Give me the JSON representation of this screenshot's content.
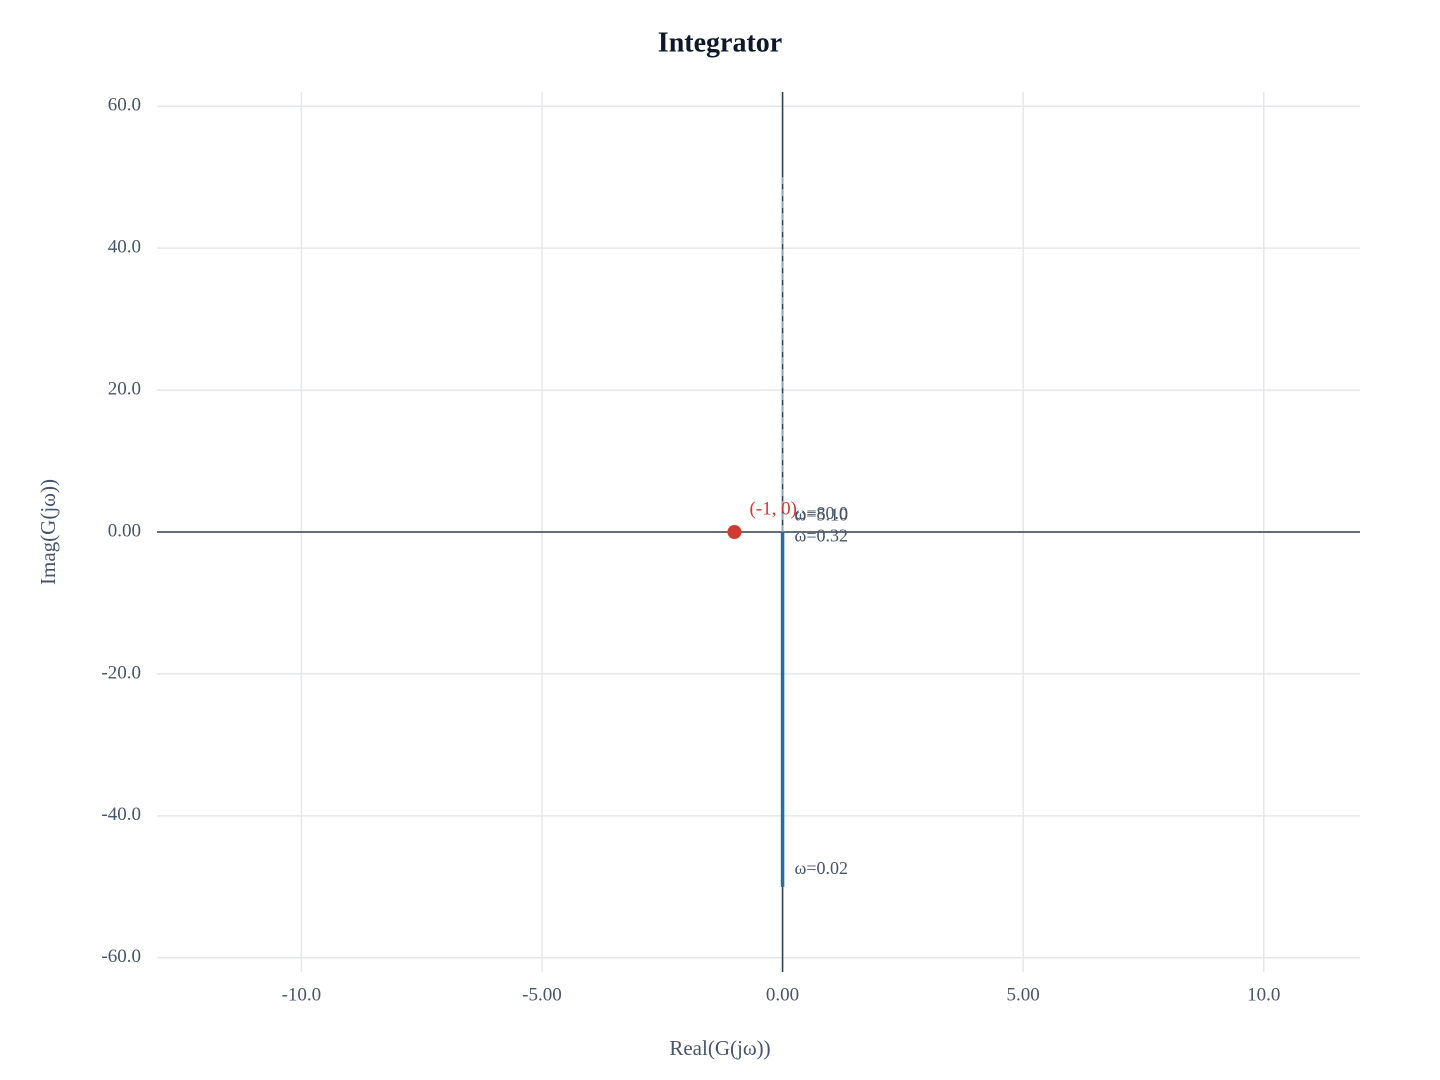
{
  "chart_data": {
    "type": "line",
    "title": "Integrator",
    "x_label": "Real(G(jω))",
    "y_label": "Imag(G(jω))",
    "xlim": [
      -13,
      12
    ],
    "ylim": [
      -62,
      62
    ],
    "xticks": [
      {
        "value": -10,
        "label": "-10.0"
      },
      {
        "value": -5,
        "label": "-5.00"
      },
      {
        "value": 0,
        "label": "0.00"
      },
      {
        "value": 5,
        "label": "5.00"
      },
      {
        "value": 10,
        "label": "10.0"
      }
    ],
    "yticks": [
      {
        "value": -60,
        "label": "-60.0"
      },
      {
        "value": -40,
        "label": "-40.0"
      },
      {
        "value": -20,
        "label": "-20.0"
      },
      {
        "value": 0,
        "label": "0.00"
      },
      {
        "value": 20,
        "label": "20.0"
      },
      {
        "value": 40,
        "label": "40.0"
      },
      {
        "value": 60,
        "label": "60.0"
      }
    ],
    "grid": true,
    "zero_lines": true,
    "series": [
      {
        "color": "#1f6fae",
        "dashed": false,
        "x": [
          0,
          0,
          0,
          0
        ],
        "values": [
          -50,
          -3.125,
          -0.196,
          -0.0125
        ]
      },
      {
        "color": "#94a3b8",
        "dashed": true,
        "x": [
          0,
          0,
          0,
          0
        ],
        "values": [
          50,
          3.125,
          0.196,
          0.0125
        ]
      }
    ],
    "annotations": [
      {
        "text": "ω=0.02",
        "x": 0,
        "y": -50
      },
      {
        "text": "ω=0.32",
        "x": 0,
        "y": -3.125
      },
      {
        "text": "ω=5.10",
        "x": 0,
        "y": -0.196
      },
      {
        "text": "ω=80.0",
        "x": 0,
        "y": -0.0125
      }
    ],
    "critical_point": {
      "x": -1,
      "y": 0,
      "label": "(-1, 0)",
      "color": "#d03b2f"
    }
  }
}
